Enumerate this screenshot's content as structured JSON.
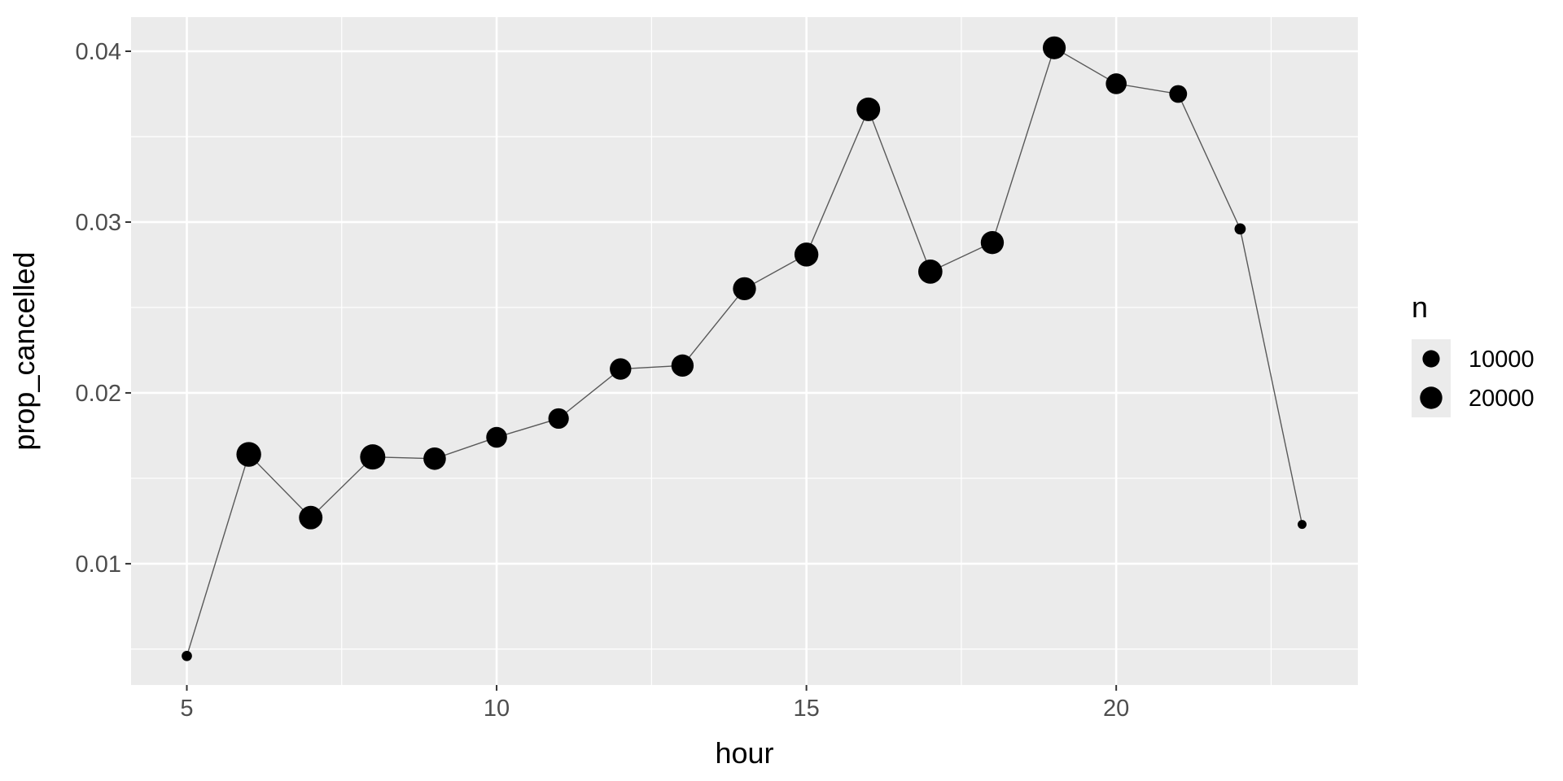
{
  "chart_data": {
    "type": "scatter",
    "title": "",
    "xlabel": "hour",
    "ylabel": "prop_cancelled",
    "xlim": [
      4.1,
      23.9
    ],
    "ylim": [
      0.0029,
      0.042
    ],
    "x_ticks": [
      5,
      10,
      15,
      20
    ],
    "x_tick_labels": [
      "5",
      "10",
      "15",
      "20"
    ],
    "y_ticks": [
      0.01,
      0.02,
      0.03,
      0.04
    ],
    "y_tick_labels": [
      "0.01",
      "0.02",
      "0.03",
      "0.04"
    ],
    "grid": true,
    "connect_line": true,
    "points": [
      {
        "x": 5,
        "y": 0.0046,
        "n": 1953
      },
      {
        "x": 6,
        "y": 0.0164,
        "n": 25951
      },
      {
        "x": 7,
        "y": 0.0127,
        "n": 22821
      },
      {
        "x": 8,
        "y": 0.01625,
        "n": 27242
      },
      {
        "x": 9,
        "y": 0.01615,
        "n": 20312
      },
      {
        "x": 10,
        "y": 0.0174,
        "n": 16708
      },
      {
        "x": 11,
        "y": 0.0185,
        "n": 16033
      },
      {
        "x": 12,
        "y": 0.0214,
        "n": 18181
      },
      {
        "x": 13,
        "y": 0.0216,
        "n": 19956
      },
      {
        "x": 14,
        "y": 0.0261,
        "n": 21706
      },
      {
        "x": 15,
        "y": 0.0281,
        "n": 23888
      },
      {
        "x": 16,
        "y": 0.0366,
        "n": 23002
      },
      {
        "x": 17,
        "y": 0.0271,
        "n": 24426
      },
      {
        "x": 18,
        "y": 0.0288,
        "n": 21783
      },
      {
        "x": 19,
        "y": 0.0402,
        "n": 21441
      },
      {
        "x": 20,
        "y": 0.0381,
        "n": 16739
      },
      {
        "x": 21,
        "y": 0.0375,
        "n": 10933
      },
      {
        "x": 22,
        "y": 0.0296,
        "n": 2639
      },
      {
        "x": 23,
        "y": 0.0123,
        "n": 1061
      }
    ],
    "legend": {
      "title": "n",
      "position": "right",
      "entries": [
        {
          "label": "10000",
          "value": 10000
        },
        {
          "label": "20000",
          "value": 20000
        }
      ]
    },
    "colors": {
      "panel": "#ebebeb",
      "grid_major": "#ffffff",
      "point": "#000000",
      "line": "#595959"
    }
  }
}
